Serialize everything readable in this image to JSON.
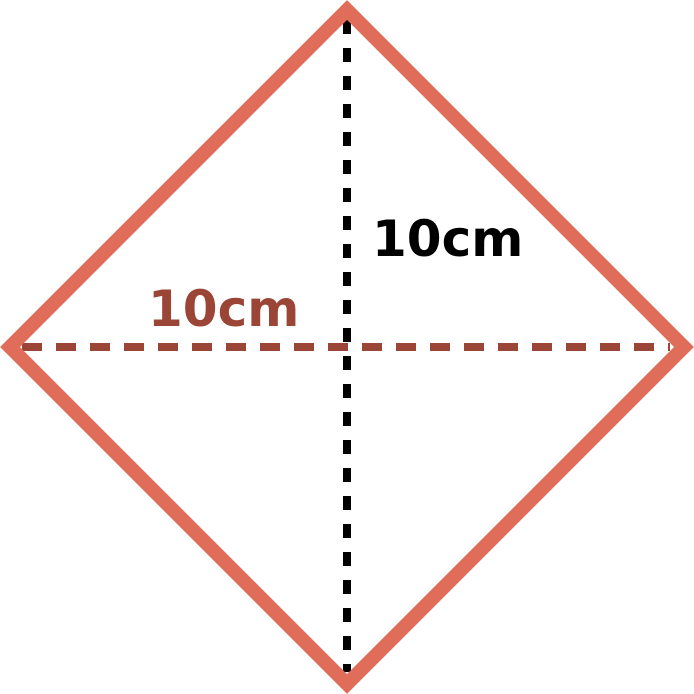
{
  "shape": {
    "name": "square",
    "outline_color": "#E06C5A"
  },
  "diagonals": {
    "vertical": {
      "label": "10cm",
      "line_color": "#000000",
      "label_color": "#000000"
    },
    "horizontal": {
      "label": "10cm",
      "line_color": "#9A4536",
      "label_color": "#9A4536"
    }
  }
}
